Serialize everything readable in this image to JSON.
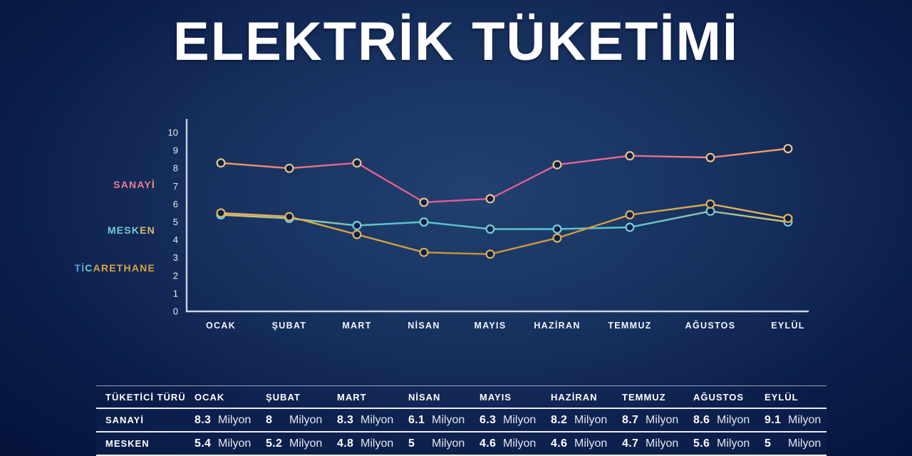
{
  "title": "ELEKTRİK TÜKETİMİ",
  "colors": {
    "background_center": "#1e3a6e",
    "background_edge": "#041138",
    "axis": "#ccd4e4",
    "text": "#ffffff",
    "sanayi_pink": "#e0569b",
    "mesken_teal": "#58c5d0",
    "ticarethane_gold": "#d9a441"
  },
  "legend": {
    "items": [
      {
        "name": "sanayi",
        "parts": [
          {
            "text": "SANAY",
            "color": "#ef7a93"
          },
          {
            "text": "İ",
            "color": "#eda05e"
          }
        ]
      },
      {
        "name": "mesken",
        "parts": [
          {
            "text": "MESK",
            "color": "#74cbd4"
          },
          {
            "text": "EN",
            "color": "#d9bd6d"
          }
        ]
      },
      {
        "name": "ticarethane",
        "parts": [
          {
            "text": "Tİ",
            "color": "#5ba7d8"
          },
          {
            "text": "C",
            "color": "#6fc8cd"
          },
          {
            "text": "ARETHANE",
            "color": "#d9a441"
          }
        ]
      }
    ]
  },
  "chart_data": {
    "type": "line",
    "title": "ELEKTRİK TÜKETİMİ",
    "categories": [
      "OCAK",
      "ŞUBAT",
      "MART",
      "NİSAN",
      "MAYIS",
      "HAZİRAN",
      "TEMMUZ",
      "AĞUSTOS",
      "EYLÜL"
    ],
    "series": [
      {
        "name": "SANAYİ",
        "values": [
          8.3,
          8,
          8.3,
          6.1,
          6.3,
          8.2,
          8.7,
          8.6,
          9.1
        ],
        "marker_color": "#eec488",
        "line_gradient": [
          [
            "0%",
            "#f0a55e"
          ],
          [
            "22%",
            "#e86192"
          ],
          [
            "48%",
            "#e0569b"
          ],
          [
            "78%",
            "#ea6f8d"
          ],
          [
            "100%",
            "#f0ad5e"
          ]
        ]
      },
      {
        "name": "MESKEN",
        "values": [
          5.4,
          5.2,
          4.8,
          5,
          4.6,
          4.6,
          4.7,
          5.6,
          5
        ],
        "marker_color": "#7ad0d8",
        "line_gradient": [
          [
            "0%",
            "#d8c070"
          ],
          [
            "28%",
            "#58c5d0"
          ],
          [
            "72%",
            "#58c5d0"
          ],
          [
            "100%",
            "#d8c070"
          ]
        ]
      },
      {
        "name": "TİCARETHANE",
        "values": [
          5.5,
          5.3,
          4.3,
          3.3,
          3.2,
          4.1,
          5.4,
          6,
          5.2
        ],
        "marker_color": "#e2b258",
        "line_gradient": [
          [
            "0%",
            "#e5b65e"
          ],
          [
            "45%",
            "#c89238"
          ],
          [
            "100%",
            "#e5b65e"
          ]
        ]
      }
    ],
    "ylim": [
      0,
      10
    ],
    "yticks": [
      0,
      1,
      2,
      3,
      4,
      5,
      6,
      7,
      8,
      9,
      10
    ],
    "grid": false,
    "legend_position": "left"
  },
  "table": {
    "columns": [
      "TÜKETİCİ TÜRÜ",
      "OCAK",
      "ŞUBAT",
      "MART",
      "NİSAN",
      "MAYIS",
      "HAZİRAN",
      "TEMMUZ",
      "AĞUSTOS",
      "EYLÜL"
    ],
    "unit": "Milyon",
    "rows": [
      {
        "label": "SANAYİ",
        "values": [
          "8.3",
          "8",
          "8.3",
          "6.1",
          "6.3",
          "8.2",
          "8.7",
          "8.6",
          "9.1"
        ]
      },
      {
        "label": "MESKEN",
        "values": [
          "5.4",
          "5.2",
          "4.8",
          "5",
          "4.6",
          "4.6",
          "4.7",
          "5.6",
          "5"
        ]
      }
    ]
  }
}
